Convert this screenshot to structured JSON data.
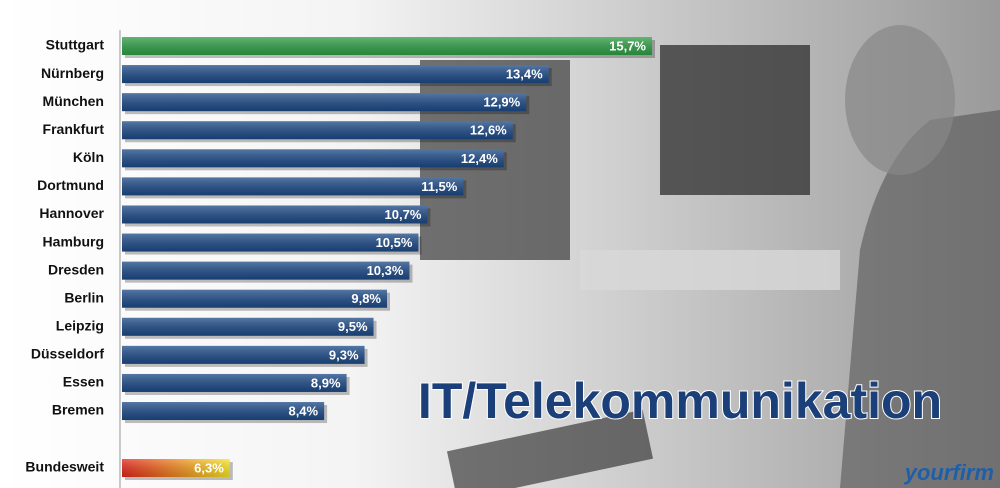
{
  "chart_data": {
    "type": "bar",
    "orientation": "horizontal",
    "title": "IT/Telekommunikation",
    "brand": "yourfirm",
    "categories": [
      "Stuttgart",
      "Nürnberg",
      "München",
      "Frankfurt",
      "Köln",
      "Dortmund",
      "Hannover",
      "Hamburg",
      "Dresden",
      "Berlin",
      "Leipzig",
      "Düsseldorf",
      "Essen",
      "Bremen"
    ],
    "values": [
      15.7,
      13.4,
      12.9,
      12.6,
      12.4,
      11.5,
      10.7,
      10.5,
      10.3,
      9.8,
      9.5,
      9.3,
      8.9,
      8.4
    ],
    "value_labels": [
      "15,7%",
      "13,4%",
      "12,9%",
      "12,6%",
      "12,4%",
      "11,5%",
      "10,7%",
      "10,5%",
      "10,3%",
      "9,8%",
      "9,5%",
      "9,3%",
      "8,9%",
      "8,4%"
    ],
    "colors": [
      "#2f9e46",
      "#1d4a86",
      "#1d4a86",
      "#1d4a86",
      "#1d4a86",
      "#1d4a86",
      "#1d4a86",
      "#1d4a86",
      "#1d4a86",
      "#1d4a86",
      "#1d4a86",
      "#1d4a86",
      "#1d4a86",
      "#1d4a86"
    ],
    "reference": {
      "name": "Bundesweit",
      "value": 6.3,
      "value_label": "6,3%",
      "colors": [
        "#e3261b",
        "#f7e623"
      ]
    },
    "xlim": [
      3.9,
      15.7
    ]
  }
}
